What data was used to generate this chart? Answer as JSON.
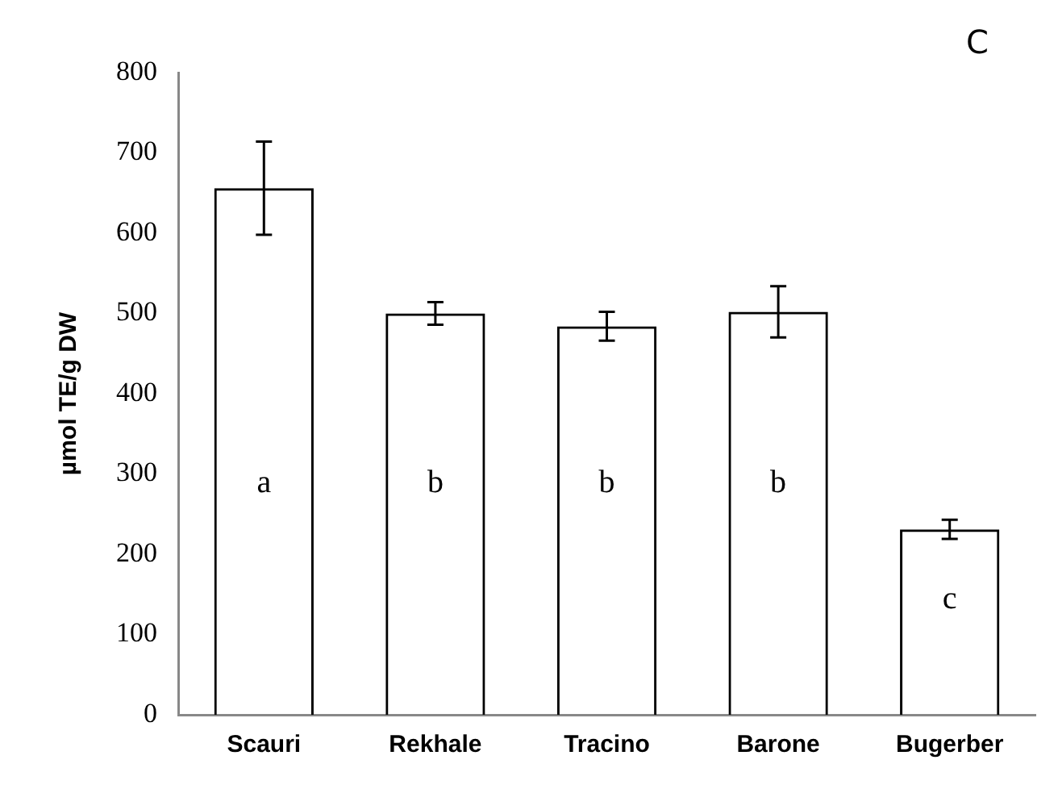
{
  "chart_data": {
    "type": "bar",
    "ylabel": "µmol TE/g DW",
    "categories": [
      "Scauri",
      "Rekhale",
      "Tracino",
      "Barone",
      "Bugerber"
    ],
    "values": [
      656,
      500,
      484,
      502,
      231
    ],
    "errors": [
      58,
      14,
      18,
      32,
      12
    ],
    "color": "#000000",
    "ylim": [
      0,
      800
    ],
    "yticks": [
      0,
      100,
      200,
      300,
      400,
      500,
      600,
      700,
      800
    ],
    "grid": false,
    "legend": false,
    "annotations": [
      "C",
      "a",
      "b",
      "b",
      "b",
      "c"
    ]
  }
}
